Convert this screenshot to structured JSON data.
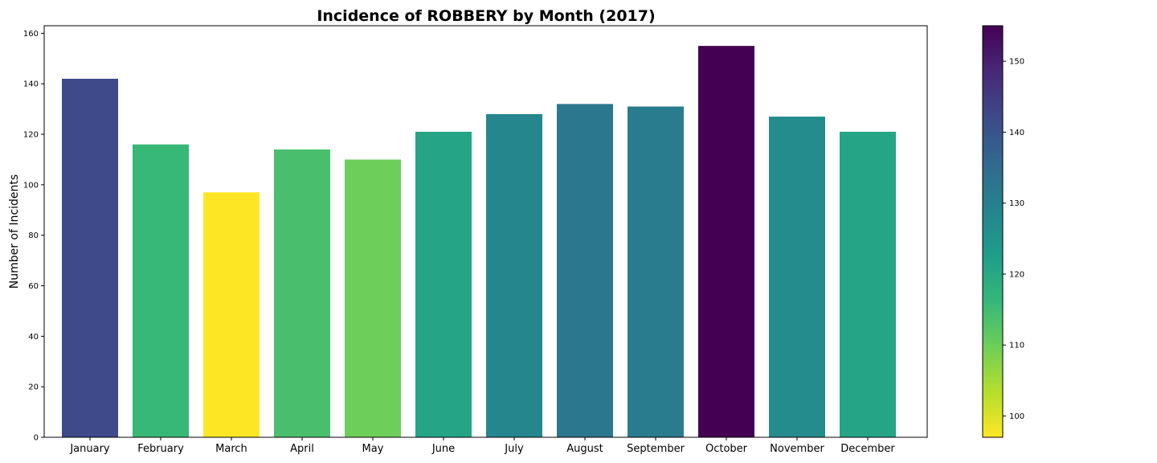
{
  "chart_data": {
    "type": "bar",
    "title": "Incidence of ROBBERY by Month (2017)",
    "xlabel": "",
    "ylabel": "Number of Incidents",
    "categories": [
      "January",
      "February",
      "March",
      "April",
      "May",
      "June",
      "July",
      "August",
      "September",
      "October",
      "November",
      "December"
    ],
    "values": [
      142,
      116,
      97,
      114,
      110,
      121,
      128,
      132,
      131,
      155,
      127,
      121
    ],
    "ylim": [
      0,
      163
    ],
    "yticks": [
      0,
      20,
      40,
      60,
      80,
      100,
      120,
      140,
      160
    ],
    "grid": false,
    "colormap": "viridis_r",
    "colorbar": {
      "range": [
        97,
        155
      ],
      "ticks": [
        100,
        110,
        120,
        130,
        140,
        150
      ]
    }
  }
}
